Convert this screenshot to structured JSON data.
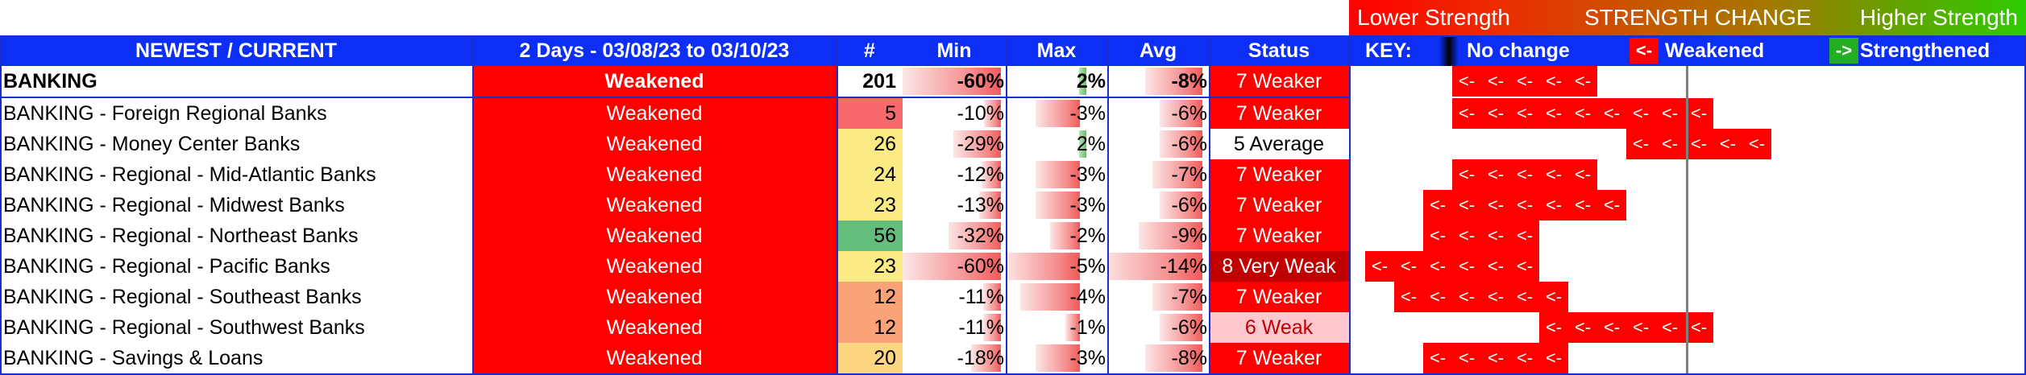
{
  "legend": {
    "low": "Lower Strength",
    "mid": "STRENGTH CHANGE",
    "high": "Higher Strength"
  },
  "header": {
    "name": "NEWEST / CURRENT",
    "period": "2 Days - 03/08/23 to 03/10/23",
    "count": "#",
    "min": "Min",
    "max": "Max",
    "avg": "Avg",
    "status": "Status",
    "key_label": "KEY:",
    "key_nochange": "No change",
    "key_weakened_glyph": "<-",
    "key_weakened": "Weakened",
    "key_strengthened_glyph": "->",
    "key_strengthened": "Strengthened"
  },
  "colors": {
    "accent_blue": "#0c2ef5",
    "weakened_red": "#ff0000",
    "strengthened_green": "#22b022"
  },
  "rows": [
    {
      "name": "BANKING",
      "change": "Weakened",
      "count": "201",
      "min": "-60%",
      "max": "2%",
      "avg": "-8%",
      "status": "7 Weaker",
      "bold": true,
      "count_color": "#ffffff",
      "status_bg": "#ff0000",
      "status_fg": "#ffffff",
      "min_pct": 1.0,
      "max_pct": 0.35,
      "avg_pct": 0.57,
      "max_positive": true,
      "arrows": 5,
      "arrow_end": 1982
    },
    {
      "name": "BANKING - Foreign Regional Banks",
      "change": "Weakened",
      "count": "5",
      "min": "-10%",
      "max": "-3%",
      "avg": "-6%",
      "status": "7 Weaker",
      "count_color": "#f8696b",
      "status_bg": "#ff0000",
      "status_fg": "#ffffff",
      "min_pct": 0.17,
      "max_pct": 0.6,
      "avg_pct": 0.43,
      "arrows": 9,
      "arrow_end": 2126
    },
    {
      "name": "BANKING - Money Center Banks",
      "change": "Weakened",
      "count": "26",
      "min": "-29%",
      "max": "2%",
      "avg": "-6%",
      "status": "5 Average",
      "count_color": "#fbe983",
      "status_bg": "#ffffff",
      "status_fg": "#000000",
      "min_pct": 0.48,
      "max_pct": 0.35,
      "avg_pct": 0.43,
      "max_positive": true,
      "arrows": 5,
      "arrow_end": 2198
    },
    {
      "name": "BANKING - Regional - Mid-Atlantic Banks",
      "change": "Weakened",
      "count": "24",
      "min": "-12%",
      "max": "-3%",
      "avg": "-7%",
      "status": "7 Weaker",
      "count_color": "#fcea84",
      "status_bg": "#ff0000",
      "status_fg": "#ffffff",
      "min_pct": 0.2,
      "max_pct": 0.6,
      "avg_pct": 0.5,
      "arrows": 5,
      "arrow_end": 1982
    },
    {
      "name": "BANKING - Regional - Midwest Banks",
      "change": "Weakened",
      "count": "23",
      "min": "-13%",
      "max": "-3%",
      "avg": "-6%",
      "status": "7 Weaker",
      "count_color": "#fcea84",
      "status_bg": "#ff0000",
      "status_fg": "#ffffff",
      "min_pct": 0.22,
      "max_pct": 0.6,
      "avg_pct": 0.43,
      "arrows": 7,
      "arrow_end": 2018
    },
    {
      "name": "BANKING - Regional - Northeast Banks",
      "change": "Weakened",
      "count": "56",
      "min": "-32%",
      "max": "-2%",
      "avg": "-9%",
      "status": "7 Weaker",
      "count_color": "#63be7b",
      "status_bg": "#ff0000",
      "status_fg": "#ffffff",
      "min_pct": 0.53,
      "max_pct": 0.4,
      "avg_pct": 0.64,
      "arrows": 4,
      "arrow_end": 1910
    },
    {
      "name": "BANKING - Regional - Pacific Banks",
      "change": "Weakened",
      "count": "23",
      "min": "-60%",
      "max": "-5%",
      "avg": "-14%",
      "status": "8 Very Weak",
      "count_color": "#fcea84",
      "status_bg": "#c00000",
      "status_fg": "#ffffff",
      "min_pct": 1.0,
      "max_pct": 1.0,
      "avg_pct": 1.0,
      "arrows": 6,
      "arrow_end": 1910
    },
    {
      "name": "BANKING - Regional - Southeast Banks",
      "change": "Weakened",
      "count": "12",
      "min": "-11%",
      "max": "-4%",
      "avg": "-7%",
      "status": "7 Weaker",
      "count_color": "#fba276",
      "status_bg": "#ff0000",
      "status_fg": "#ffffff",
      "min_pct": 0.18,
      "max_pct": 0.8,
      "avg_pct": 0.5,
      "arrows": 6,
      "arrow_end": 1946
    },
    {
      "name": "BANKING - Regional - Southwest Banks",
      "change": "Weakened",
      "count": "12",
      "min": "-11%",
      "max": "-1%",
      "avg": "-6%",
      "status": "6 Weak",
      "count_color": "#fba276",
      "status_bg": "#ffc7ce",
      "status_fg": "#c00000",
      "min_pct": 0.18,
      "max_pct": 0.2,
      "avg_pct": 0.43,
      "arrows": 6,
      "arrow_end": 2126
    },
    {
      "name": "BANKING - Savings & Loans",
      "change": "Weakened",
      "count": "20",
      "min": "-18%",
      "max": "-3%",
      "avg": "-8%",
      "status": "7 Weaker",
      "count_color": "#fdd681",
      "status_bg": "#ff0000",
      "status_fg": "#ffffff",
      "min_pct": 0.3,
      "max_pct": 0.6,
      "avg_pct": 0.57,
      "arrows": 5,
      "arrow_end": 1946
    }
  ]
}
